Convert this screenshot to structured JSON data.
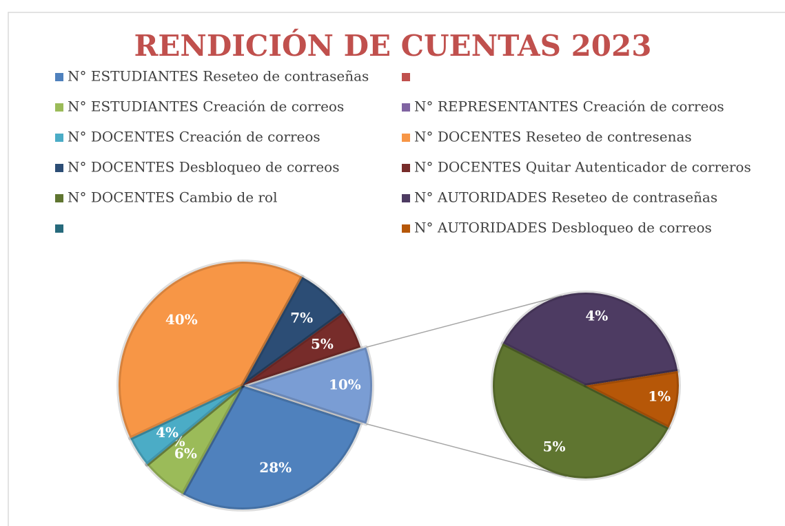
{
  "chart_data": {
    "type": "pie-of-pie",
    "title": "RENDICIÓN DE CUENTAS 2023",
    "categories": [
      "N° ESTUDIANTES Reseteo de contraseñas",
      null,
      "N° ESTUDIANTES Creación de correos",
      "N° REPRESENTANTES Creación de correos",
      "N° DOCENTES Creación de correos",
      "N° DOCENTES Reseteo de contresenas",
      "N° DOCENTES Desbloqueo de correos",
      "N° DOCENTES Quitar Autenticador de correros",
      "N° DOCENTES Cambio de rol",
      "N° AUTORIDADES Reseteo de contraseñas",
      null,
      "N° AUTORIDADES Desbloqueo de correos"
    ],
    "values": [
      28,
      null,
      6,
      0,
      4,
      40,
      7,
      5,
      5,
      4,
      null,
      1
    ],
    "value_labels": [
      "28%",
      null,
      "6%",
      "0%",
      "4%",
      "40%",
      "7%",
      "5%",
      "5%",
      "4%",
      null,
      "1%"
    ],
    "colors": [
      "#4f81bd",
      "#c0504d",
      "#9bbb59",
      "#8064a2",
      "#4bacc6",
      "#f79646",
      "#2c4d75",
      "#772c2a",
      "#5f7530",
      "#4d3b62",
      "#276a7c",
      "#b65708"
    ],
    "split_last": 4,
    "other": {
      "value": 10,
      "value_label": "10%",
      "color": "#7a9dd4"
    },
    "legend": "top"
  }
}
